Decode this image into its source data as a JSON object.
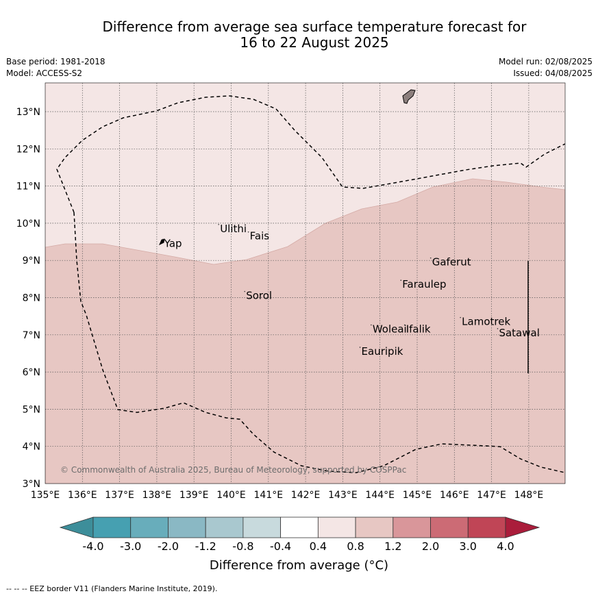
{
  "title_line1": "Difference from average sea surface temperature forecast for",
  "title_line2": "16 to 22 August 2025",
  "meta_left": [
    "Base period: 1981-2018",
    "Model: ACCESS-S2"
  ],
  "meta_right": [
    "Model run: 02/08/2025",
    "Issued: 04/08/2025"
  ],
  "copyright": "© Commonwealth of Australia 2025, Bureau of Meteorology, supported by COSPPac",
  "footnote": "-- -- -- EEZ border V11 (Flanders Marine Institute, 2019).",
  "map": {
    "lon_ticks": [
      "135°E",
      "136°E",
      "137°E",
      "138°E",
      "139°E",
      "140°E",
      "141°E",
      "142°E",
      "143°E",
      "144°E",
      "145°E",
      "146°E",
      "147°E",
      "148°E"
    ],
    "lat_ticks": [
      "3°N",
      "4°N",
      "5°N",
      "6°N",
      "7°N",
      "8°N",
      "9°N",
      "10°N",
      "11°N",
      "12°N",
      "13°N"
    ],
    "lon_range": [
      135,
      149
    ],
    "lat_range": [
      3,
      13.8
    ],
    "places": [
      {
        "name": "Yap",
        "lon": 138.2,
        "lat": 9.4
      },
      {
        "name": "Ulithi",
        "lon": 139.7,
        "lat": 9.8
      },
      {
        "name": "Fais",
        "lon": 140.5,
        "lat": 9.6
      },
      {
        "name": "Sorol",
        "lon": 140.4,
        "lat": 8.0
      },
      {
        "name": "Gaferut",
        "lon": 145.4,
        "lat": 8.9
      },
      {
        "name": "Faraulep",
        "lon": 144.6,
        "lat": 8.3
      },
      {
        "name": "Woleai",
        "lon": 143.8,
        "lat": 7.1
      },
      {
        "name": "Ifalik",
        "lon": 144.7,
        "lat": 7.1
      },
      {
        "name": "Lamotrek",
        "lon": 146.2,
        "lat": 7.3
      },
      {
        "name": "Satawal",
        "lon": 147.2,
        "lat": 7.0
      },
      {
        "name": "Eauripik",
        "lon": 143.5,
        "lat": 6.5
      }
    ],
    "anomaly_zones": [
      {
        "range": "0.4 to 0.8",
        "color": "#f4e6e5"
      },
      {
        "range": "0.8 to 1.2",
        "color": "#e7c7c3"
      }
    ]
  },
  "colorbar": {
    "title": "Difference from average (°C)",
    "ticks": [
      "-4.0",
      "-3.0",
      "-2.0",
      "-1.2",
      "-0.8",
      "-0.4",
      "0.4",
      "0.8",
      "1.2",
      "2.0",
      "3.0",
      "4.0"
    ],
    "colors": [
      "#3d8e9a",
      "#46a0b1",
      "#68adbb",
      "#8ab8c4",
      "#a9c8cf",
      "#c8dadd",
      "#ffffff",
      "#f4e6e5",
      "#e7c7c3",
      "#d9969a",
      "#cc6b75",
      "#c04556",
      "#aa1d3b"
    ]
  }
}
